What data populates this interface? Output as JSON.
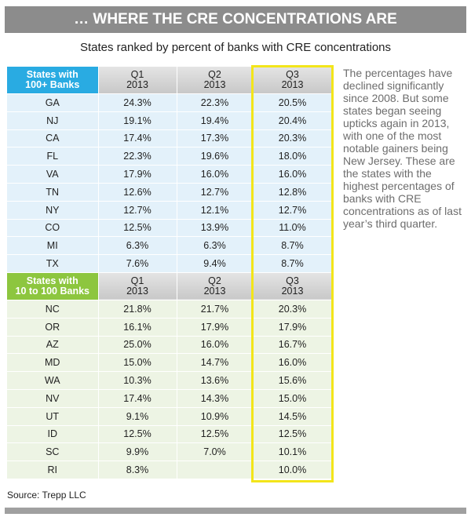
{
  "header": {
    "title": "… WHERE THE CRE CONCENTRATIONS ARE",
    "subtitle": "States ranked by percent of banks with CRE concentrations"
  },
  "sections": [
    {
      "header": [
        "States with\n100+ Banks",
        "Q1\n2013",
        "Q2\n2013",
        "Q3\n2013"
      ],
      "rows": [
        [
          "GA",
          "24.3%",
          "22.3%",
          "20.5%"
        ],
        [
          "NJ",
          "19.1%",
          "19.4%",
          "20.4%"
        ],
        [
          "CA",
          "17.4%",
          "17.3%",
          "20.3%"
        ],
        [
          "FL",
          "22.3%",
          "19.6%",
          "18.0%"
        ],
        [
          "VA",
          "17.9%",
          "16.0%",
          "16.0%"
        ],
        [
          "TN",
          "12.6%",
          "12.7%",
          "12.8%"
        ],
        [
          "NY",
          "12.7%",
          "12.1%",
          "12.7%"
        ],
        [
          "CO",
          "12.5%",
          "13.9%",
          "11.0%"
        ],
        [
          "MI",
          "6.3%",
          "6.3%",
          "8.7%"
        ],
        [
          "TX",
          "7.6%",
          "9.4%",
          "8.7%"
        ]
      ]
    },
    {
      "header": [
        "States with\n10 to 100 Banks",
        "Q1\n2013",
        "Q2\n2013",
        "Q3\n2013"
      ],
      "rows": [
        [
          "NC",
          "21.8%",
          "21.7%",
          "20.3%"
        ],
        [
          "OR",
          "16.1%",
          "17.9%",
          "17.9%"
        ],
        [
          "AZ",
          "25.0%",
          "16.0%",
          "16.7%"
        ],
        [
          "MD",
          "15.0%",
          "14.7%",
          "16.0%"
        ],
        [
          "WA",
          "10.3%",
          "13.6%",
          "15.6%"
        ],
        [
          "NV",
          "17.4%",
          "14.3%",
          "15.0%"
        ],
        [
          "UT",
          "9.1%",
          "10.9%",
          "14.5%"
        ],
        [
          "ID",
          "12.5%",
          "12.5%",
          "12.5%"
        ],
        [
          "SC",
          "9.9%",
          "7.0%",
          "10.1%"
        ],
        [
          "RI",
          "8.3%",
          null,
          "10.0%"
        ]
      ]
    }
  ],
  "sidebar": "The percentages have declined significantly since 2008. But some states began seeing upticks again in 2013, with one of the most notable gainers being New Jersey. These are the states with the highest percentages of banks with CRE concentrations as of last year’s third quarter.",
  "source": "Source: Trepp LLC"
}
